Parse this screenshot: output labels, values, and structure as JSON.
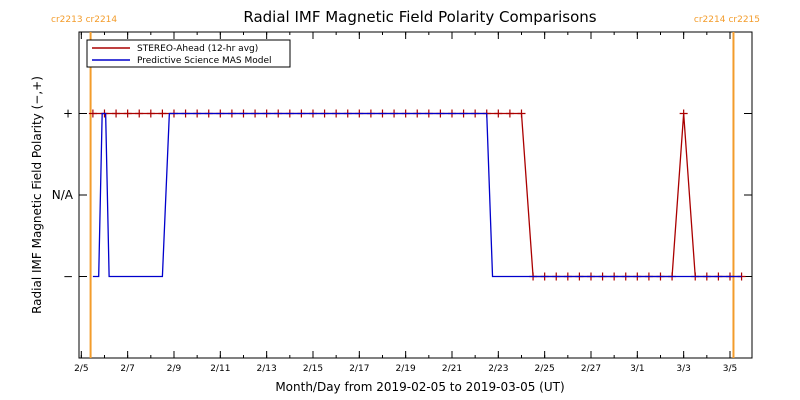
{
  "chart_data": {
    "type": "line",
    "title": "Radial IMF Magnetic Field Polarity Comparisons",
    "xlabel": "Month/Day from 2019-02-05 to 2019-03-05 (UT)",
    "ylabel": "Radial IMF Magnetic Field Polarity (−,+)",
    "xlim": [
      -0.6,
      28.45
    ],
    "ylim": [
      -2,
      2
    ],
    "x_ticks": [
      -0.5,
      1.5,
      3.5,
      5.5,
      7.5,
      9.5,
      11.5,
      13.5,
      15.5,
      17.5,
      19.5,
      21.5,
      23.5,
      25.5,
      27.5
    ],
    "x_tick_labels": [
      "2/5",
      "2/7",
      "2/9",
      "2/11",
      "2/13",
      "2/15",
      "2/17",
      "2/19",
      "2/21",
      "2/23",
      "2/25",
      "2/27",
      "3/1",
      "3/3",
      "3/5"
    ],
    "y_ticks": [
      -1,
      0,
      1
    ],
    "y_tick_labels": [
      "−",
      "N/A",
      "+"
    ],
    "series": [
      {
        "name": "STEREO-Ahead (12-hr avg)",
        "color": "#aa0000",
        "x": [
          0,
          0.5,
          1,
          1.5,
          2,
          2.5,
          3,
          3.5,
          4,
          4.5,
          5,
          5.5,
          6,
          6.5,
          7,
          7.5,
          8,
          8.5,
          9,
          9.5,
          10,
          10.5,
          11,
          11.5,
          12,
          12.5,
          13,
          13.5,
          14,
          14.5,
          15,
          15.5,
          16,
          16.5,
          17,
          17.5,
          18,
          18.5,
          19,
          19.5,
          20,
          20.5,
          21,
          21.5,
          22,
          22.5,
          23,
          23.5,
          24,
          24.5,
          25,
          25.5,
          26,
          26.5,
          27,
          27.5,
          28
        ],
        "y": [
          1,
          1,
          1,
          1,
          1,
          1,
          1,
          1,
          1,
          1,
          1,
          1,
          1,
          1,
          1,
          1,
          1,
          1,
          1,
          1,
          1,
          1,
          1,
          1,
          1,
          1,
          1,
          1,
          1,
          1,
          1,
          1,
          1,
          1,
          1,
          1,
          1,
          1,
          -1,
          -1,
          -1,
          -1,
          -1,
          -1,
          -1,
          -1,
          -1,
          -1,
          -1,
          -1,
          -1,
          1,
          -1,
          -1,
          -1,
          -1,
          -1
        ]
      },
      {
        "name": "Predictive Science MAS Model",
        "color": "#0000cc",
        "x": [
          0,
          0.25,
          0.4,
          0.55,
          0.7,
          1.0,
          3.0,
          3.3,
          10,
          17,
          17.25,
          23,
          28
        ],
        "y": [
          -1,
          -1,
          1,
          1,
          -1,
          -1,
          -1,
          1,
          1,
          1,
          -1,
          -1,
          -1
        ]
      }
    ],
    "vertical_markers": [
      {
        "x": -0.1,
        "labels": [
          "cr2213",
          "cr2214"
        ],
        "color": "#f39c2b"
      },
      {
        "x": 27.65,
        "labels": [
          "cr2214",
          "cr2215"
        ],
        "color": "#f39c2b"
      }
    ],
    "legend": "top-left",
    "grid": false
  }
}
